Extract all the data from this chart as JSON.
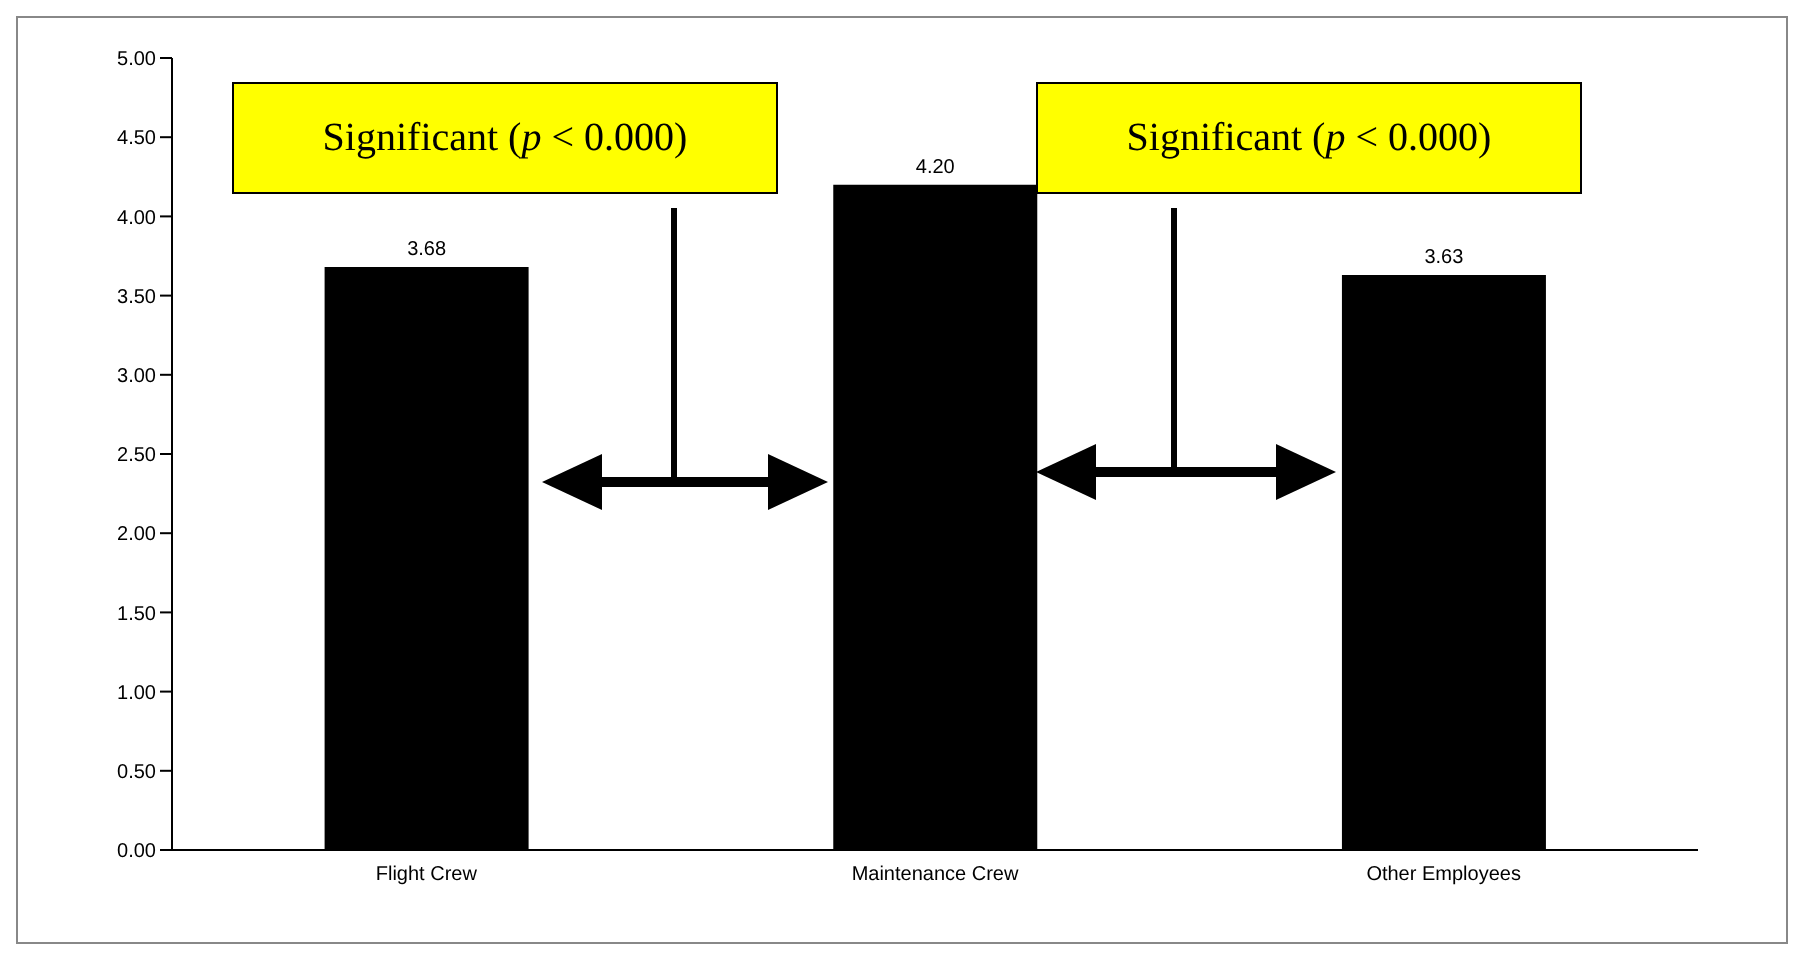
{
  "chart_data": {
    "type": "bar",
    "categories": [
      "Flight Crew",
      "Maintenance Crew",
      "Other Employees"
    ],
    "values": [
      3.68,
      4.2,
      3.63
    ],
    "color": "#000000",
    "value_labels": [
      "3.68",
      "4.20",
      "3.63"
    ],
    "ylim": [
      0,
      5
    ],
    "yticks": [
      {
        "value": 0,
        "label": "0.00"
      },
      {
        "value": 0.5,
        "label": "0.50"
      },
      {
        "value": 1,
        "label": "1.00"
      },
      {
        "value": 1.5,
        "label": "1.50"
      },
      {
        "value": 2,
        "label": "2.00"
      },
      {
        "value": 2.5,
        "label": "2.50"
      },
      {
        "value": 3,
        "label": "3.00"
      },
      {
        "value": 3.5,
        "label": "3.50"
      },
      {
        "value": 4,
        "label": "4.00"
      },
      {
        "value": 4.5,
        "label": "4.50"
      },
      {
        "value": 5,
        "label": "5.00"
      }
    ],
    "annotations": [
      "Significant (p < 0.000)",
      "Significant (p < 0.000)"
    ],
    "grid": false,
    "legend": false
  }
}
